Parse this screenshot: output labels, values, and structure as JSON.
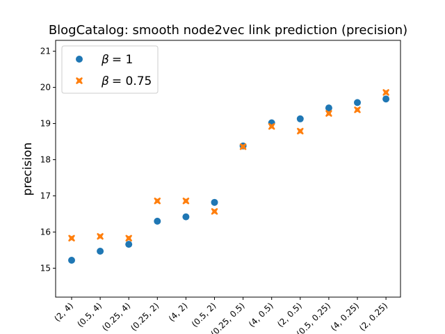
{
  "chart_data": {
    "type": "scatter",
    "title": "BlogCatalog: smooth node2vec link prediction (precision)",
    "xlabel": "",
    "ylabel": "precision",
    "categories": [
      "(2, 4)",
      "(0.5, 4)",
      "(0.25, 4)",
      "(0.25, 2)",
      "(4, 2)",
      "(0.5, 2)",
      "(0.25, 0.5)",
      "(4, 0.5)",
      "(2, 0.5)",
      "(0.5, 0.25)",
      "(4, 0.25)",
      "(2, 0.25)"
    ],
    "ylim": [
      14.2,
      21.3
    ],
    "yticks": [
      15,
      16,
      17,
      18,
      19,
      20,
      21
    ],
    "grid": false,
    "legend_position": "upper-left",
    "series": [
      {
        "name": "β = 1",
        "legend_var": "β",
        "legend_val": "= 1",
        "marker": "circle",
        "color": "#1f77b4",
        "values": [
          15.22,
          15.47,
          15.66,
          16.3,
          16.42,
          16.82,
          18.38,
          19.02,
          19.13,
          19.43,
          19.58,
          19.68
        ]
      },
      {
        "name": "β = 0.75",
        "legend_var": "β",
        "legend_val": "= 0.75",
        "marker": "x-filled",
        "color": "#ff7f0e",
        "values": [
          15.83,
          15.88,
          15.83,
          16.86,
          16.86,
          16.57,
          18.36,
          18.92,
          18.79,
          19.28,
          19.38,
          19.86
        ]
      }
    ]
  }
}
